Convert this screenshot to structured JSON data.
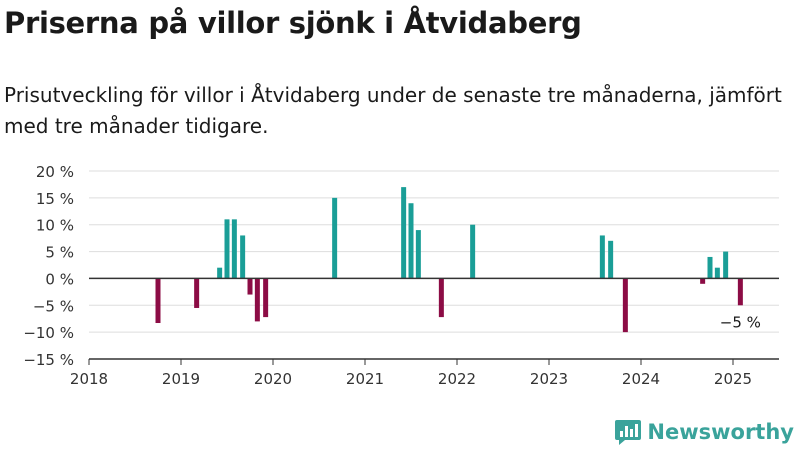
{
  "header": {
    "title": "Priserna på villor sjönk i Åtvidaberg",
    "subtitle": "Prisutveckling för villor i Åtvidaberg under de senaste tre månaderna, jämfört med tre månader tidigare."
  },
  "brand": {
    "name": "Newsworthy",
    "color": "#3aa39b",
    "icon": "newsworthy-chart-logo-icon"
  },
  "colors": {
    "positive": "#1a9e97",
    "negative": "#8c0c45",
    "grid": "#dddddd",
    "axis": "#333333"
  },
  "chart_data": {
    "type": "bar",
    "title": "Priserna på villor sjönk i Åtvidaberg",
    "xlabel": "",
    "ylabel": "",
    "ylim": [
      -15,
      20
    ],
    "yticks": [
      -15,
      -10,
      -5,
      0,
      5,
      10,
      15,
      20
    ],
    "ytick_labels": [
      "−15 %",
      "−10 %",
      "−5 %",
      "0 %",
      "5 %",
      "10 %",
      "15 %",
      "20 %"
    ],
    "xlim": [
      2018,
      2025.5
    ],
    "xticks": [
      2018,
      2019,
      2020,
      2021,
      2022,
      2023,
      2024,
      2025
    ],
    "xtick_labels": [
      "2018",
      "2019",
      "2020",
      "2021",
      "2022",
      "2023",
      "2024",
      "2025"
    ],
    "grid": true,
    "annotation": {
      "text": "−5 %",
      "x": 2025.08,
      "y": -5
    },
    "points": [
      {
        "x": 2018.75,
        "y": -8.3
      },
      {
        "x": 2019.17,
        "y": -5.5
      },
      {
        "x": 2019.42,
        "y": 2
      },
      {
        "x": 2019.5,
        "y": 11
      },
      {
        "x": 2019.58,
        "y": 11
      },
      {
        "x": 2019.67,
        "y": 8
      },
      {
        "x": 2019.75,
        "y": -3
      },
      {
        "x": 2019.83,
        "y": -8
      },
      {
        "x": 2019.92,
        "y": -7.2
      },
      {
        "x": 2020.67,
        "y": 15
      },
      {
        "x": 2021.42,
        "y": 17
      },
      {
        "x": 2021.5,
        "y": 14
      },
      {
        "x": 2021.58,
        "y": 9
      },
      {
        "x": 2021.83,
        "y": -7.2
      },
      {
        "x": 2022.17,
        "y": 10
      },
      {
        "x": 2023.58,
        "y": 8
      },
      {
        "x": 2023.67,
        "y": 7
      },
      {
        "x": 2023.83,
        "y": -10
      },
      {
        "x": 2024.67,
        "y": -1
      },
      {
        "x": 2024.75,
        "y": 4
      },
      {
        "x": 2024.83,
        "y": 2
      },
      {
        "x": 2024.92,
        "y": 5
      },
      {
        "x": 2025.08,
        "y": -5
      }
    ]
  }
}
